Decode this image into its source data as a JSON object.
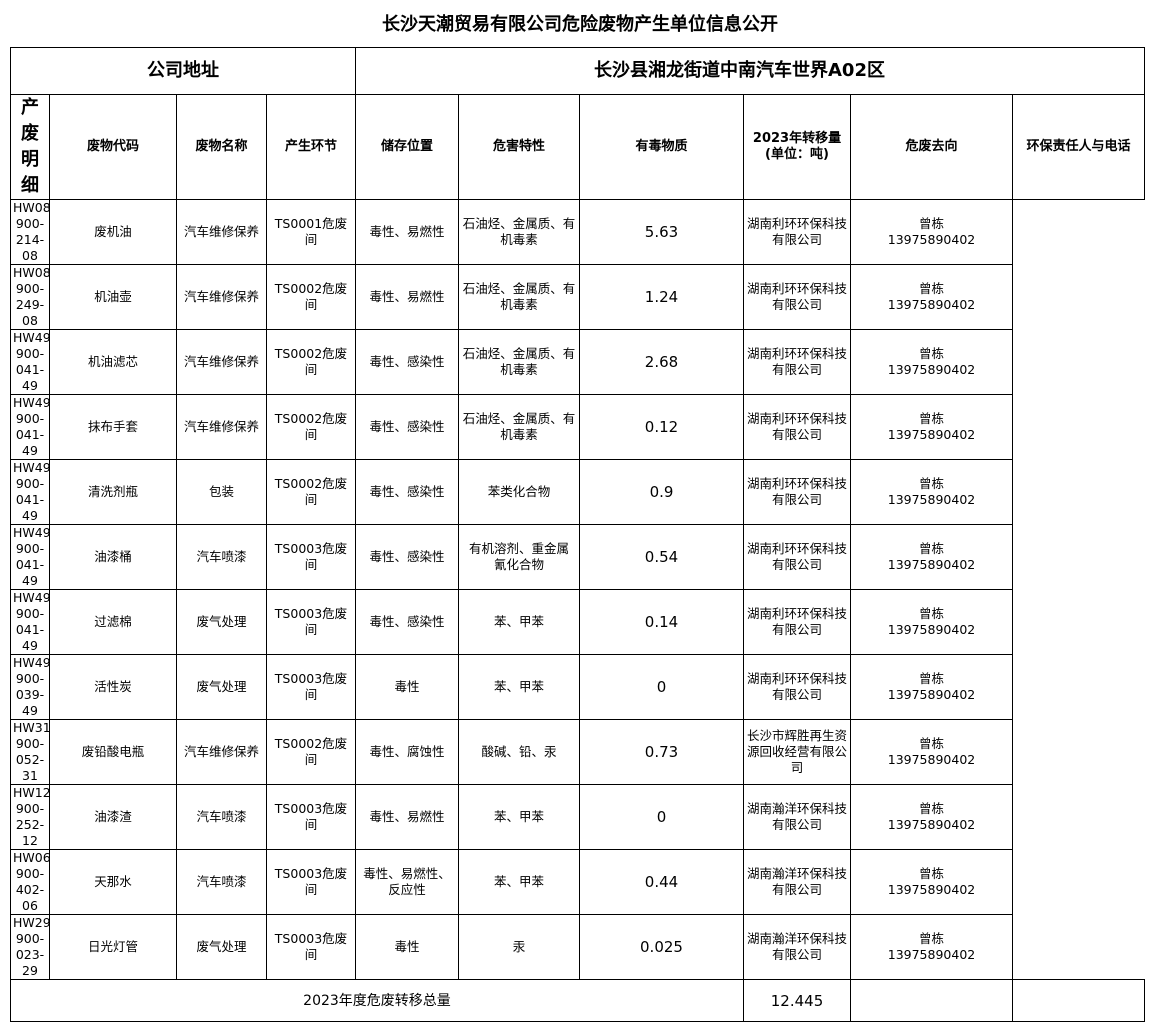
{
  "title": "长沙天潮贸易有限公司危险废物产生单位信息公开",
  "address_label": "公司地址",
  "address_value": "长沙县湘龙街道中南汽车世界A02区",
  "section_label": "产废明细",
  "headers": [
    "废物代码",
    "废物名称",
    "产生环节",
    "储存位置",
    "危害特性",
    "有毒物质",
    "2023年转移量\n(单位：吨)",
    "危废去向",
    "环保责任人与电话"
  ],
  "rows": [
    [
      "HW08-900-214-08",
      "废机油",
      "汽车维修保养",
      "TS0001危废间",
      "毒性、易燃性",
      "石油烃、金属质、有机毒素",
      "5.63",
      "湖南利环环保科技有限公司",
      "曾栋\n13975890402"
    ],
    [
      "HW08-900-249-08",
      "机油壶",
      "汽车维修保养",
      "TS0002危废间",
      "毒性、易燃性",
      "石油烃、金属质、有机毒素",
      "1.24",
      "湖南利环环保科技有限公司",
      "曾栋\n13975890402"
    ],
    [
      "HW49-900-041-49",
      "机油滤芯",
      "汽车维修保养",
      "TS0002危废间",
      "毒性、感染性",
      "石油烃、金属质、有机毒素",
      "2.68",
      "湖南利环环保科技有限公司",
      "曾栋\n13975890402"
    ],
    [
      "HW49-900-041-49",
      "抹布手套",
      "汽车维修保养",
      "TS0002危废间",
      "毒性、感染性",
      "石油烃、金属质、有机毒素",
      "0.12",
      "湖南利环环保科技有限公司",
      "曾栋\n13975890402"
    ],
    [
      "HW49-900-041-49",
      "清洗剂瓶",
      "包装",
      "TS0002危废间",
      "毒性、感染性",
      "苯类化合物",
      "0.9",
      "湖南利环环保科技有限公司",
      "曾栋\n13975890402"
    ],
    [
      "HW49-900-041-49",
      "油漆桶",
      "汽车喷漆",
      "TS0003危废间",
      "毒性、感染性",
      "有机溶剂、重金属\n氰化合物",
      "0.54",
      "湖南利环环保科技有限公司",
      "曾栋\n13975890402"
    ],
    [
      "HW49-900-041-49",
      "过滤棉",
      "废气处理",
      "TS0003危废间",
      "毒性、感染性",
      "苯、甲苯",
      "0.14",
      "湖南利环环保科技有限公司",
      "曾栋\n13975890402"
    ],
    [
      "HW49-900-039-49",
      "活性炭",
      "废气处理",
      "TS0003危废间",
      "毒性",
      "苯、甲苯",
      "0",
      "湖南利环环保科技有限公司",
      "曾栋\n13975890402"
    ],
    [
      "HW31-900-052-31",
      "废铅酸电瓶",
      "汽车维修保养",
      "TS0002危废间",
      "毒性、腐蚀性",
      "酸碱、铅、汞",
      "0.73",
      "长沙市辉胜再生资源回收经营有限公司",
      "曾栋\n13975890402"
    ],
    [
      "HW12-900-252-12",
      "油漆渣",
      "汽车喷漆",
      "TS0003危废间",
      "毒性、易燃性",
      "苯、甲苯",
      "0",
      "湖南瀚洋环保科技有限公司",
      "曾栋\n13975890402"
    ],
    [
      "HW06-900-402-06",
      "天那水",
      "汽车喷漆",
      "TS0003危废间",
      "毒性、易燃性、反应性",
      "苯、甲苯",
      "0.44",
      "湖南瀚洋环保科技有限公司",
      "曾栋\n13975890402"
    ],
    [
      "HW29-900-023-29",
      "日光灯管",
      "废气处理",
      "TS0003危废间",
      "毒性",
      "汞",
      "0.025",
      "湖南瀚洋环保科技有限公司",
      "曾栋\n13975890402"
    ]
  ],
  "total_label": "2023年度危废转移总量",
  "total_value": "12.445"
}
